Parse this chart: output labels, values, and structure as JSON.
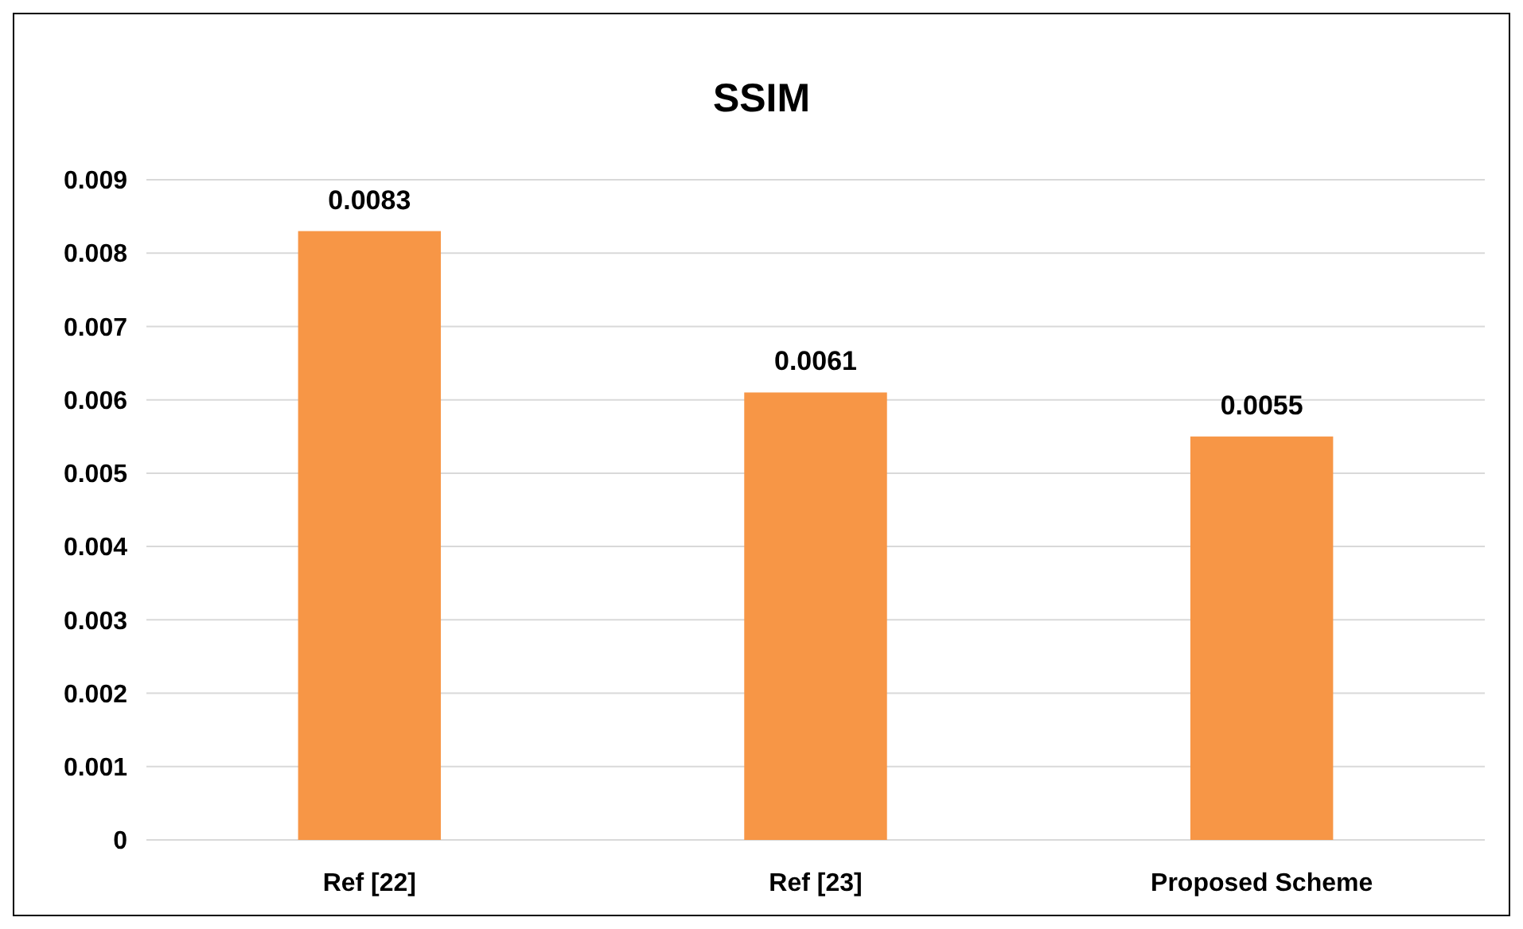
{
  "chart_data": {
    "type": "bar",
    "title": "SSIM",
    "categories": [
      "Ref [22]",
      "Ref [23]",
      "Proposed Scheme"
    ],
    "values": [
      0.0083,
      0.0061,
      0.0055
    ],
    "color": "#f79646",
    "ylim": [
      0,
      0.009
    ],
    "yticks": [
      0,
      0.001,
      0.002,
      0.003,
      0.004,
      0.005,
      0.006,
      0.007,
      0.008,
      0.009
    ],
    "grid": "y",
    "data_labels": true
  }
}
